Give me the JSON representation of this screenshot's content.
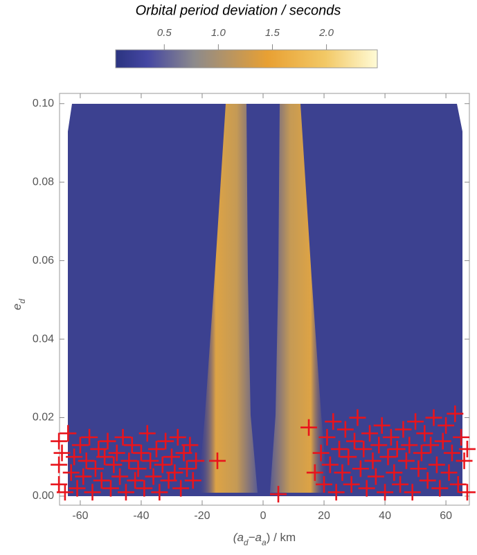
{
  "chart_data": {
    "type": "scatter",
    "colorbar": {
      "label": "Orbital period deviation / seconds",
      "lim": [
        0.05,
        2.47
      ],
      "ticks": [
        0.5,
        {
          "value": 1,
          "label": "1.0"
        },
        1.5,
        {
          "value": 2,
          "label": "2.0"
        }
      ]
    },
    "xlabel": [
      {
        "text": "(a"
      },
      {
        "text": "d",
        "sub": true
      },
      {
        "text": "−a"
      },
      {
        "text": "a",
        "sub": true
      },
      {
        "text": ") / km"
      }
    ],
    "ylabel": [
      {
        "text": "e"
      },
      {
        "text": "d",
        "sub": true
      }
    ],
    "xlim": [
      -66.8,
      67.7
    ],
    "ylim": [
      -0.0023,
      0.1026
    ],
    "xticks": [
      -60,
      -40,
      -20,
      0,
      20,
      40,
      60
    ],
    "yticks": [
      {
        "value": 0,
        "label": "0.00"
      },
      0.02,
      0.04,
      0.06,
      0.08,
      {
        "value": 0.1,
        "label": "0.10"
      }
    ],
    "grid": false,
    "points": {
      "color": "#e8141c",
      "x": [
        -67,
        -67,
        -67,
        -66,
        -65,
        -64,
        -63,
        -62,
        -61,
        -60,
        -59,
        -58,
        -57,
        -56,
        -55,
        -54,
        -53,
        -52,
        -51,
        -50,
        -49,
        -48,
        -47,
        -46,
        -45,
        -44,
        -43,
        -42,
        -41,
        -40,
        -39,
        -38,
        -37,
        -36,
        -35,
        -34,
        -33,
        -32,
        -31,
        -30,
        -29,
        -28,
        -27,
        -26,
        -25,
        -24,
        -23,
        -22,
        -15,
        5,
        15,
        17,
        19,
        20,
        21,
        22,
        23,
        24,
        25,
        26,
        27,
        28,
        29,
        30,
        31,
        32,
        33,
        34,
        35,
        36,
        37,
        38,
        39,
        40,
        41,
        42,
        43,
        44,
        45,
        46,
        47,
        48,
        49,
        50,
        51,
        52,
        53,
        54,
        55,
        56,
        57,
        58,
        59,
        60,
        61,
        62,
        63,
        64,
        65,
        66,
        67,
        67
      ],
      "y": [
        0.014,
        0.008,
        0.003,
        0.011,
        0.001,
        0.016,
        0.006,
        0.01,
        0.002,
        0.013,
        0.005,
        0.009,
        0.015,
        0.001,
        0.007,
        0.012,
        0.004,
        0.01,
        0.014,
        0.002,
        0.008,
        0.011,
        0.005,
        0.015,
        0.001,
        0.009,
        0.013,
        0.004,
        0.007,
        0.011,
        0.002,
        0.016,
        0.009,
        0.005,
        0.012,
        0.001,
        0.008,
        0.014,
        0.004,
        0.01,
        0.006,
        0.015,
        0.002,
        0.011,
        0.007,
        0.013,
        0.004,
        0.009,
        0.009,
        0.0005,
        0.0175,
        0.006,
        0.011,
        0.003,
        0.015,
        0.008,
        0.019,
        0.001,
        0.012,
        0.006,
        0.017,
        0.01,
        0.003,
        0.014,
        0.02,
        0.007,
        0.012,
        0.002,
        0.016,
        0.009,
        0.005,
        0.013,
        0.018,
        0.001,
        0.01,
        0.015,
        0.006,
        0.012,
        0.003,
        0.017,
        0.009,
        0.013,
        0.001,
        0.019,
        0.007,
        0.011,
        0.016,
        0.004,
        0.013,
        0.02,
        0.008,
        0.002,
        0.014,
        0.018,
        0.006,
        0.011,
        0.021,
        0.003,
        0.015,
        0.009,
        0.012,
        0.001
      ]
    }
  }
}
